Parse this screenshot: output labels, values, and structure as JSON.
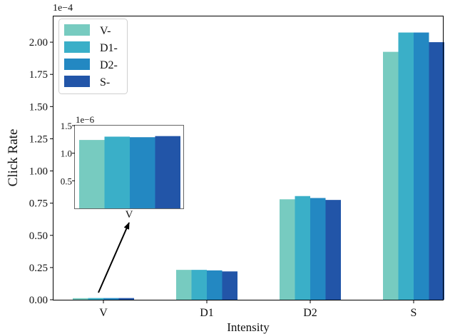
{
  "chart_data": {
    "type": "bar",
    "categories": [
      "V",
      "D1",
      "D2",
      "S"
    ],
    "series": [
      {
        "name": "V-",
        "color": "#77cbc0",
        "values": [
          0.012,
          0.232,
          0.78,
          1.925
        ]
      },
      {
        "name": "D1-",
        "color": "#3aafc8",
        "values": [
          0.013,
          0.232,
          0.805,
          2.075
        ]
      },
      {
        "name": "D2-",
        "color": "#2388c2",
        "values": [
          0.013,
          0.228,
          0.79,
          2.075
        ]
      },
      {
        "name": "S-",
        "color": "#2255a8",
        "values": [
          0.013,
          0.22,
          0.775,
          2.0
        ]
      }
    ],
    "xlabel": "Intensity",
    "ylabel": "Click Rate",
    "scale_label": "1e−4",
    "ylim": [
      0,
      2.2
    ],
    "yticks": [
      0.0,
      0.25,
      0.5,
      0.75,
      1.0,
      1.25,
      1.5,
      1.75,
      2.0
    ],
    "ytick_labels": [
      "0.00",
      "0.25",
      "0.50",
      "0.75",
      "1.00",
      "1.25",
      "1.50",
      "1.75",
      "2.00"
    ],
    "legend_position": "top-left",
    "inset": {
      "category": "V",
      "scale_label": "1e−6",
      "values": [
        1.24,
        1.3,
        1.29,
        1.31
      ],
      "ylim": [
        0,
        1.5
      ],
      "yticks": [
        0.5,
        1.0,
        1.5
      ],
      "ytick_labels": [
        "0.5",
        "1.0",
        "1.5"
      ]
    }
  }
}
